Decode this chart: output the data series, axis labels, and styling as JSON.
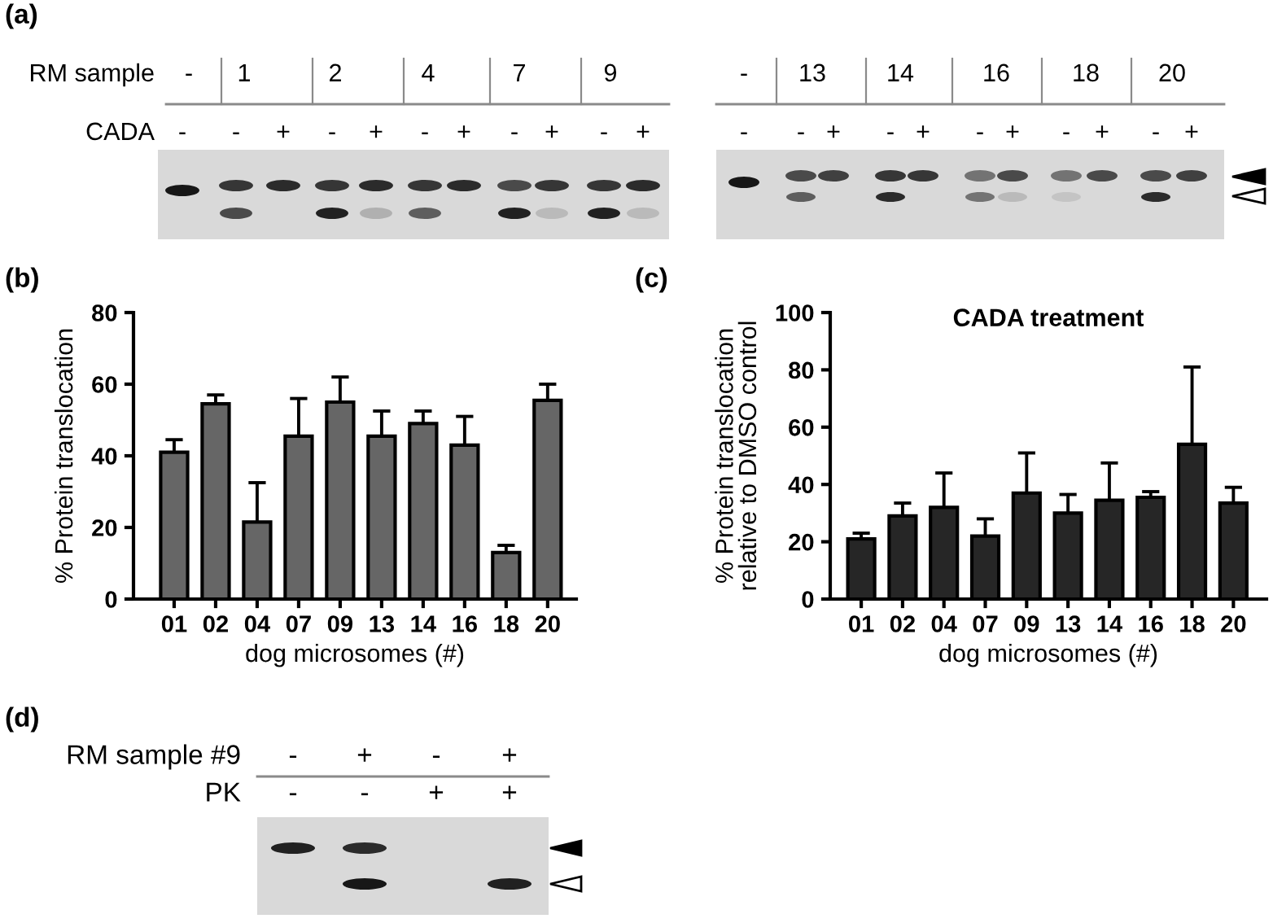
{
  "chart_data": [
    {
      "type": "other",
      "title": "(a)",
      "annotations": [
        "RM sample",
        "-",
        "1",
        "2",
        "4",
        "7",
        "9",
        "-",
        "13",
        "14",
        "16",
        "18",
        "20",
        "CADA",
        "-",
        "-",
        "+",
        "-",
        "+",
        "-",
        "+",
        "-",
        "+",
        "-",
        "+",
        "-",
        "-",
        "+",
        "-",
        "+",
        "-",
        "+",
        "-",
        "+",
        "-",
        "+"
      ]
    },
    {
      "type": "bar",
      "title": "(b)",
      "xlabel": "dog microsomes (#)",
      "ylabel": "% Protein translocation",
      "categories": [
        "01",
        "02",
        "04",
        "07",
        "09",
        "13",
        "14",
        "16",
        "18",
        "20"
      ],
      "values": [
        41,
        54.5,
        21.5,
        45.5,
        55,
        45.5,
        49,
        43,
        13,
        55.5
      ],
      "errors": [
        [
          41,
          44.5
        ],
        [
          54.5,
          57
        ],
        [
          21.5,
          32.5
        ],
        [
          45.5,
          56
        ],
        [
          55,
          62
        ],
        [
          45.5,
          52.5
        ],
        [
          49,
          52.5
        ],
        [
          43,
          51
        ],
        [
          13,
          15
        ],
        [
          55.5,
          60
        ]
      ],
      "color": "#666666",
      "ylim": [
        0,
        80
      ],
      "yticks": [
        0,
        20,
        40,
        60,
        80
      ]
    },
    {
      "type": "bar",
      "title": "(c)",
      "subtitle": "CADA treatment",
      "xlabel": "dog microsomes (#)",
      "ylabel": "% Protein translocation\nrelative to DMSO control",
      "categories": [
        "01",
        "02",
        "04",
        "07",
        "09",
        "13",
        "14",
        "16",
        "18",
        "20"
      ],
      "values": [
        21,
        29,
        32,
        22,
        37,
        30,
        34.5,
        35.5,
        54,
        33.5
      ],
      "errors": [
        [
          21,
          23
        ],
        [
          29,
          33.5
        ],
        [
          32,
          44
        ],
        [
          22,
          28
        ],
        [
          37,
          51
        ],
        [
          30,
          36.5
        ],
        [
          34.5,
          47.5
        ],
        [
          35.5,
          37.5
        ],
        [
          54,
          81
        ],
        [
          33.5,
          39
        ]
      ],
      "color": "#262626",
      "ylim": [
        0,
        100
      ],
      "yticks": [
        0,
        20,
        40,
        60,
        80,
        100
      ]
    },
    {
      "type": "other",
      "title": "(d)",
      "annotations": [
        "RM sample #9",
        "-",
        "+",
        "-",
        "+",
        "PK",
        "-",
        "-",
        "+",
        "+"
      ]
    }
  ]
}
